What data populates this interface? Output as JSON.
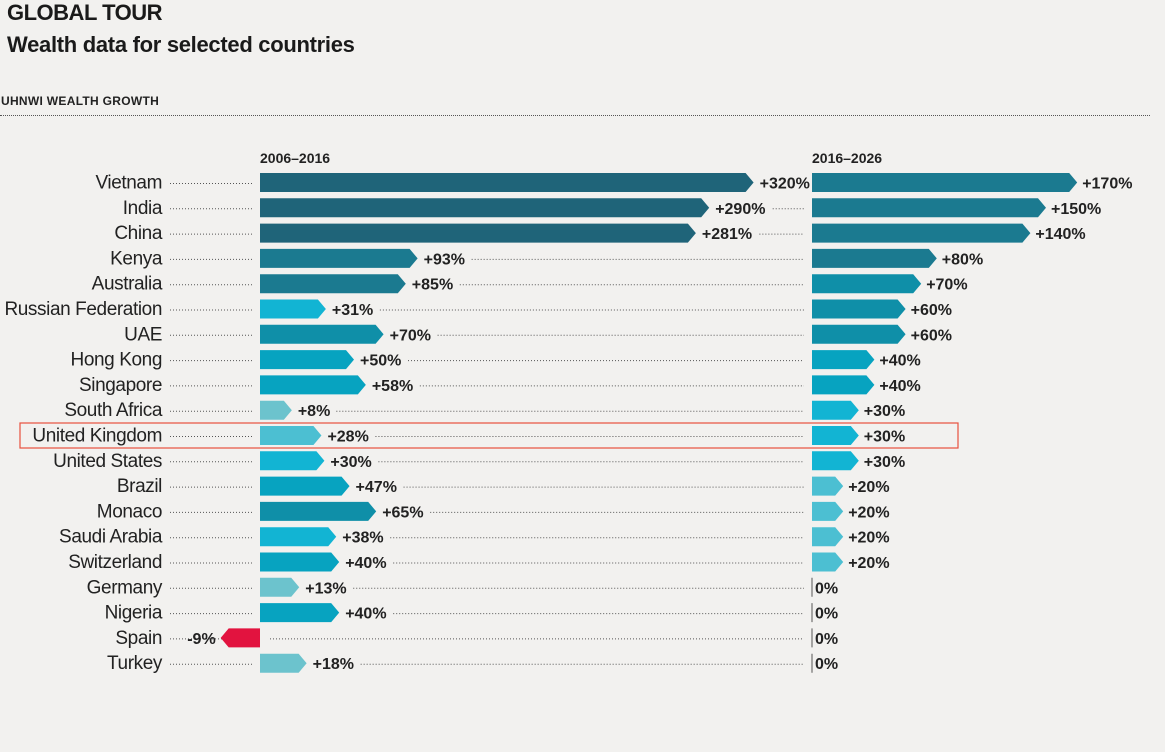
{
  "header": {
    "kicker": "GLOBAL TOUR",
    "subtitle": "Wealth data for selected countries",
    "section": "UHNWI WEALTH GROWTH"
  },
  "chart_data": {
    "type": "bar",
    "title": "UHNWI WEALTH GROWTH",
    "categories": [
      "Vietnam",
      "India",
      "China",
      "Kenya",
      "Australia",
      "Russian Federation",
      "UAE",
      "Hong Kong",
      "Singapore",
      "South Africa",
      "United Kingdom",
      "United States",
      "Brazil",
      "Monaco",
      "Saudi Arabia",
      "Switzerland",
      "Germany",
      "Nigeria",
      "Spain",
      "Turkey"
    ],
    "series": [
      {
        "name": "2006–2016",
        "values": [
          320,
          290,
          281,
          93,
          85,
          31,
          70,
          50,
          58,
          8,
          28,
          30,
          47,
          65,
          38,
          40,
          13,
          40,
          -9,
          18
        ],
        "labels": [
          "+320%",
          "+290%",
          "+281%",
          "+93%",
          "+85%",
          "+31%",
          "+70%",
          "+50%",
          "+58%",
          "+8%",
          "+28%",
          "+30%",
          "+47%",
          "+65%",
          "+38%",
          "+40%",
          "+13%",
          "+40%",
          "-9%",
          "+18%"
        ]
      },
      {
        "name": "2016–2026",
        "values": [
          170,
          150,
          140,
          80,
          70,
          60,
          60,
          40,
          40,
          30,
          30,
          30,
          20,
          20,
          20,
          20,
          0,
          0,
          0,
          0
        ],
        "labels": [
          "+170%",
          "+150%",
          "+140%",
          "+80%",
          "+70%",
          "+60%",
          "+60%",
          "+40%",
          "+40%",
          "+30%",
          "+30%",
          "+30%",
          "+20%",
          "+20%",
          "+20%",
          "+20%",
          "0%",
          "0%",
          "0%",
          "0%"
        ]
      }
    ],
    "highlight": "United Kingdom",
    "colors": {
      "darkest": "#1f6479",
      "dark": "#1b7a90",
      "mid": "#0f8fa8",
      "bright": "#07a3c0",
      "cyan": "#12b4d3",
      "light": "#4cbfd2",
      "pale": "#6cc3cd",
      "negative": "#e2133f",
      "highlight_box": "#e8503e"
    }
  }
}
